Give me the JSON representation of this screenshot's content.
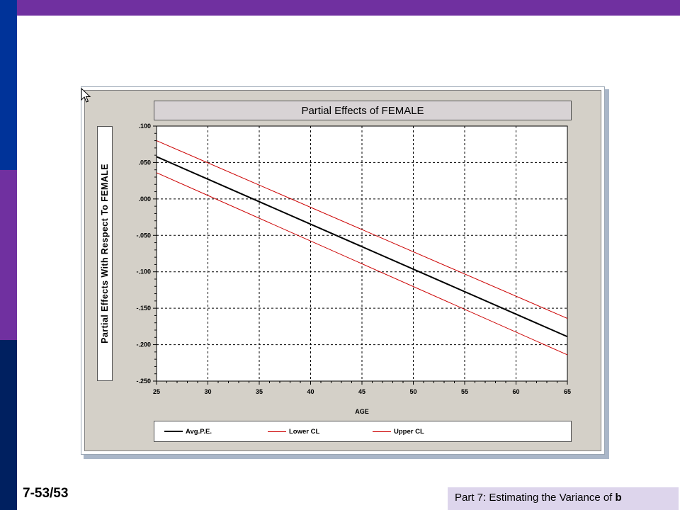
{
  "slide": {
    "number": "7-53/53",
    "footer_prefix": "Part 7: Estimating the Variance of ",
    "footer_bold": "b"
  },
  "colors": {
    "top_bar": "#7030a0",
    "sidebar": [
      "#003399",
      "#7030a0",
      "#002060"
    ],
    "footer_bg": "#ddd5ec",
    "avg_line": "#000000",
    "ci_line": "#cc0000"
  },
  "chart_data": {
    "type": "line",
    "title": "Partial Effects of FEMALE",
    "xlabel": "AGE",
    "ylabel": "Partial Effects With Respect To FEMALE",
    "xlim": [
      25,
      65
    ],
    "ylim": [
      -0.25,
      0.1
    ],
    "xticks": [
      25,
      30,
      35,
      40,
      45,
      50,
      55,
      60,
      65
    ],
    "yticks": [
      0.1,
      0.05,
      0.0,
      -0.05,
      -0.1,
      -0.15,
      -0.2,
      -0.25
    ],
    "ytick_labels": [
      ".100",
      ".050",
      ".000",
      "-.050",
      "-.100",
      "-.150",
      "-.200",
      "-.250"
    ],
    "grid": true,
    "legend_placement": "bottom",
    "x": [
      25,
      65
    ],
    "series": [
      {
        "name": "Avg.P.E.",
        "values": [
          0.058,
          -0.189
        ]
      },
      {
        "name": "Lower CL",
        "values": [
          0.036,
          -0.214
        ]
      },
      {
        "name": "Upper CL",
        "values": [
          0.08,
          -0.164
        ]
      }
    ]
  }
}
